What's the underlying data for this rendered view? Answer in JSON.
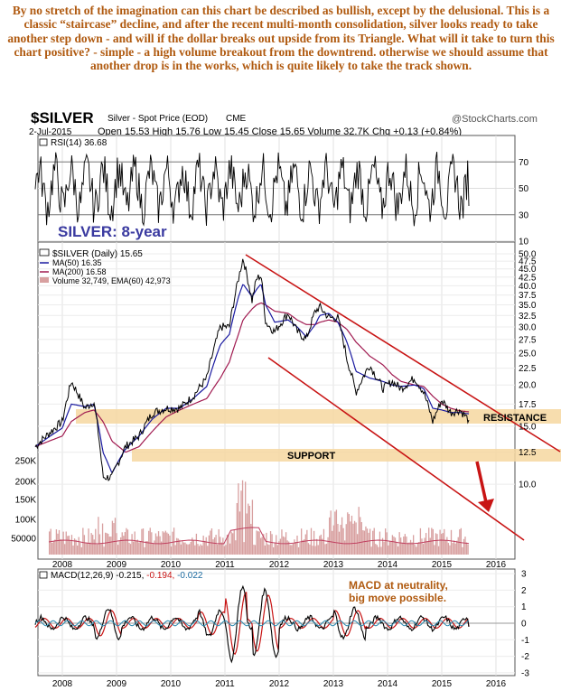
{
  "commentary": "By no stretch of the imagination can this chart be described as bullish, except by the delusional. This is a classic “staircase” decline, and after the recent multi-month consolidation, silver looks ready to take another step down - and will if the dollar breaks out upside from its Triangle. What will it take to turn this chart positive? - simple - a high volume breakout from the downtrend. otherwise we should assume that another drop is in the works, which is quite likely to take the track shown.",
  "header": {
    "symbol": "$SILVER",
    "name": "Silver - Spot Price (EOD)",
    "exchange": "CME",
    "credit": "@StockCharts.com",
    "date": "2-Jul-2015",
    "ohlc": "Open 15.53  High 15.76  Low 15.45  Close 15.65  Volume 32.7K  Chg +0.13 (+0.84%)"
  },
  "rsi": {
    "label": "RSI(14) 36.68",
    "ticks": [
      "70",
      "50",
      "30",
      "10"
    ]
  },
  "main": {
    "overlay_title": "SILVER: 8-year",
    "legend": [
      {
        "text": "$SILVER (Daily) 15.65",
        "color": "#000000"
      },
      {
        "text": "MA(50) 16.35",
        "color": "#1a1aa0"
      },
      {
        "text": "MA(200) 16.58",
        "color": "#a01a50"
      },
      {
        "text": "Volume 32,749, EMA(60) 42,973",
        "color": "#444444"
      }
    ],
    "price_ticks": [
      "50.0",
      "47.5",
      "45.0",
      "42.5",
      "40.0",
      "37.5",
      "35.0",
      "32.5",
      "30.0",
      "27.5",
      "25.0",
      "22.5",
      "20.0",
      "17.5",
      "15.0",
      "12.5",
      "10.0"
    ],
    "volume_ticks": [
      "250K",
      "200K",
      "150K",
      "100K",
      "50000"
    ],
    "resistance_label": "RESISTANCE",
    "support_label": "SUPPORT",
    "colors": {
      "price": "#000000",
      "ma50": "#1a1aa0",
      "ma200": "#a01a50",
      "zone": "#f6d7a0",
      "channel": "#c81414",
      "volume": "#d8a0a0"
    }
  },
  "macd": {
    "label": "MACD(12,26,9) -0.215, -0.194, -0.022",
    "note_line1": "MACD at neutrality,",
    "note_line2": "big move possible.",
    "ticks": [
      "3",
      "2",
      "1",
      "0",
      "-1",
      "-2",
      "-3"
    ],
    "note_color": "#b05a10"
  },
  "years": [
    "2008",
    "2009",
    "2010",
    "2011",
    "2012",
    "2013",
    "2014",
    "2015",
    "2016"
  ],
  "chart_data": [
    {
      "type": "line",
      "title": "$SILVER Silver - Spot Price (EOD)",
      "series_name": "$SILVER (Daily)",
      "x": [
        "2007-07",
        "2008-01",
        "2008-03",
        "2008-06",
        "2008-08",
        "2008-10",
        "2008-12",
        "2009-03",
        "2009-06",
        "2009-09",
        "2009-12",
        "2010-03",
        "2010-06",
        "2010-09",
        "2010-12",
        "2011-02",
        "2011-04",
        "2011-05",
        "2011-07",
        "2011-08",
        "2011-09",
        "2011-10",
        "2011-12",
        "2012-03",
        "2012-05",
        "2012-07",
        "2012-09",
        "2012-10",
        "2012-12",
        "2013-02",
        "2013-04",
        "2013-06",
        "2013-09",
        "2013-12",
        "2014-02",
        "2014-04",
        "2014-07",
        "2014-09",
        "2014-11",
        "2015-01",
        "2015-03",
        "2015-05",
        "2015-07"
      ],
      "close": [
        13.0,
        15.5,
        20.5,
        17.0,
        17.8,
        10.5,
        10.5,
        13.0,
        14.0,
        16.5,
        17.0,
        17.0,
        18.5,
        21.0,
        30.0,
        30.0,
        42.0,
        48.5,
        36.0,
        42.0,
        43.0,
        31.0,
        29.0,
        33.0,
        29.0,
        27.5,
        33.5,
        34.5,
        32.0,
        32.0,
        24.0,
        19.0,
        23.0,
        19.5,
        20.5,
        19.5,
        21.0,
        19.0,
        15.5,
        18.0,
        16.5,
        16.8,
        15.65
      ],
      "ma50": [
        13.0,
        14.8,
        17.5,
        17.2,
        17.5,
        12.5,
        10.8,
        12.8,
        14.0,
        15.8,
        17.0,
        17.0,
        18.2,
        19.8,
        26.5,
        28.5,
        37.0,
        40.5,
        37.0,
        39.0,
        40.5,
        35.0,
        31.0,
        31.5,
        30.0,
        28.0,
        30.5,
        32.5,
        33.0,
        31.0,
        27.0,
        22.0,
        21.0,
        20.5,
        20.0,
        19.8,
        20.0,
        19.5,
        17.0,
        16.8,
        16.5,
        16.5,
        16.35
      ],
      "ma200": [
        13.0,
        14.0,
        15.5,
        16.5,
        16.8,
        15.5,
        13.5,
        12.5,
        13.0,
        14.5,
        16.0,
        16.8,
        17.5,
        18.2,
        21.0,
        23.5,
        28.5,
        31.5,
        34.0,
        35.0,
        35.5,
        35.0,
        33.5,
        33.0,
        31.5,
        30.5,
        30.5,
        31.0,
        31.5,
        31.0,
        29.5,
        27.0,
        24.5,
        23.0,
        21.5,
        20.5,
        20.0,
        19.8,
        18.5,
        17.5,
        17.0,
        16.7,
        16.58
      ],
      "ylim": [
        9,
        50
      ],
      "log_scale": true,
      "annotations": [
        "RESISTANCE",
        "SUPPORT",
        "SILVER: 8-year"
      ]
    },
    {
      "type": "line",
      "series_name": "RSI(14)",
      "x": [
        "2015-07"
      ],
      "values": [
        36.68
      ],
      "ylim": [
        10,
        90
      ]
    },
    {
      "type": "bar",
      "series_name": "Volume",
      "x": [
        "2015-07"
      ],
      "values": [
        32749
      ],
      "ema60": 42973
    },
    {
      "type": "line",
      "series_name": "MACD(12,26,9)",
      "x": [
        "2015-07"
      ],
      "macd": -0.215,
      "signal": -0.194,
      "histogram": -0.022,
      "ylim": [
        -3,
        3
      ]
    }
  ]
}
